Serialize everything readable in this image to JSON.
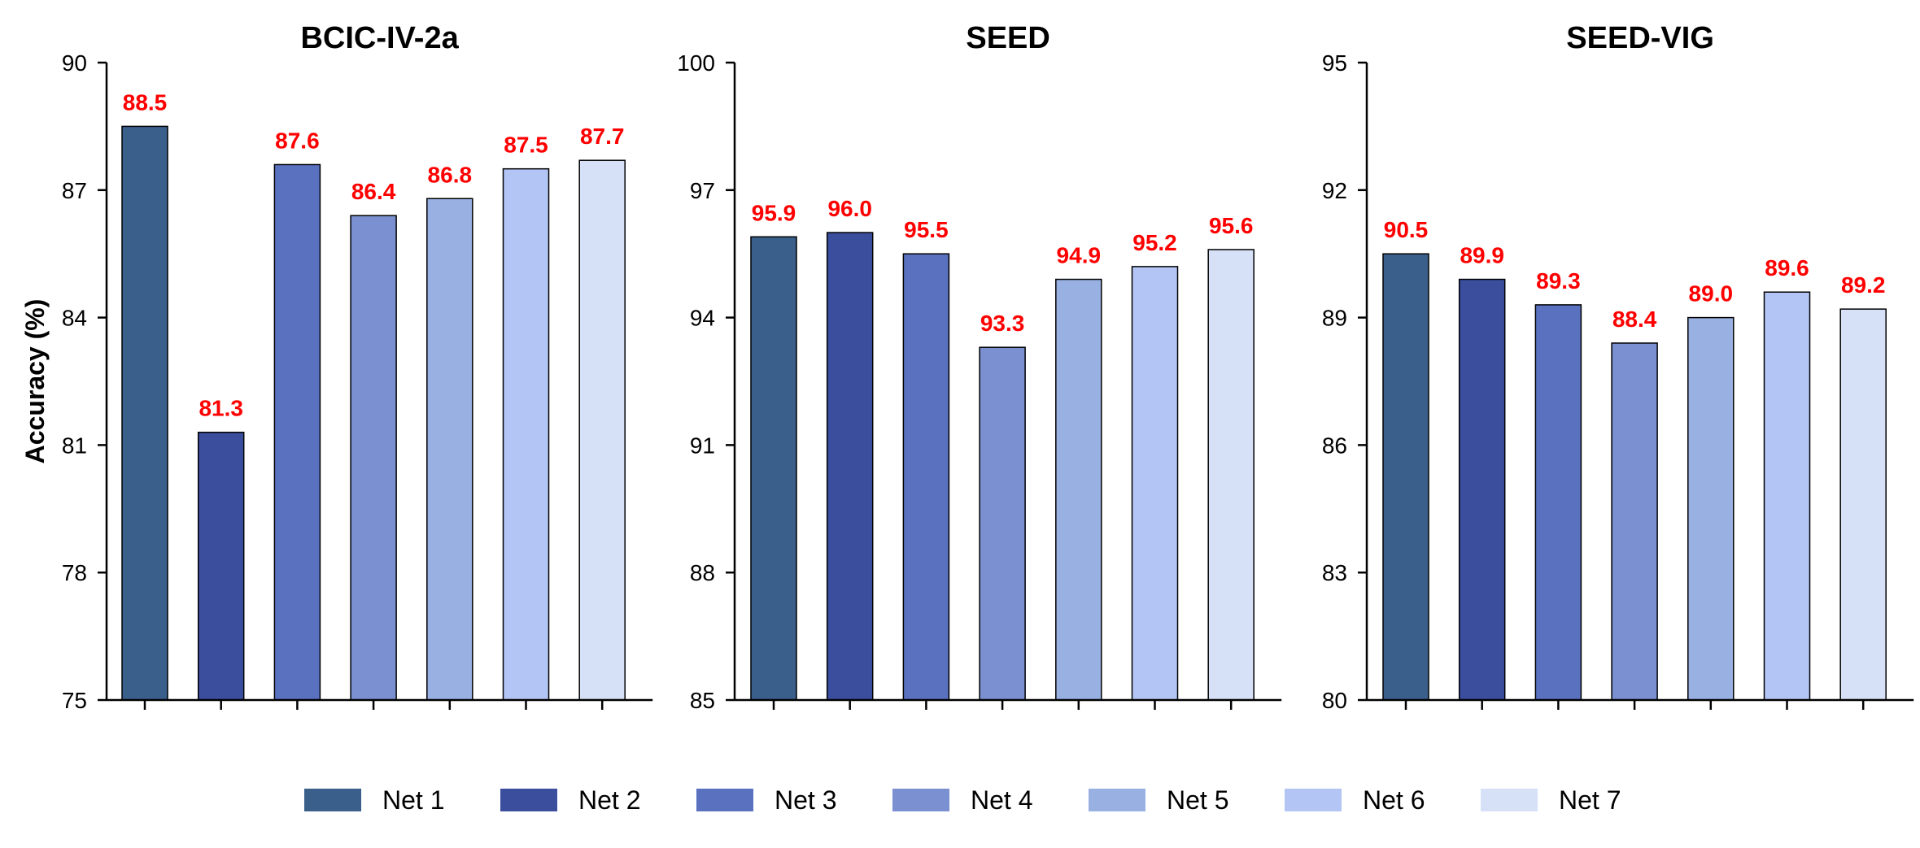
{
  "chart_data": [
    {
      "type": "bar",
      "title": "BCIC-IV-2a",
      "ylabel": "Accuracy (%)",
      "xlabel": "",
      "ylim": [
        75,
        90
      ],
      "yticks": [
        "75",
        "78",
        "81",
        "84",
        "87",
        "90"
      ],
      "categories": [
        "Net 1",
        "Net 2",
        "Net 3",
        "Net 4",
        "Net 5",
        "Net 6",
        "Net 7"
      ],
      "values": [
        88.5,
        81.3,
        87.6,
        86.4,
        86.8,
        87.5,
        87.7
      ],
      "labels": [
        "88.5",
        "81.3",
        "87.6",
        "86.4",
        "86.8",
        "87.5",
        "87.7"
      ]
    },
    {
      "type": "bar",
      "title": "SEED",
      "ylabel": "",
      "xlabel": "",
      "ylim": [
        85,
        100
      ],
      "yticks": [
        "85",
        "88",
        "91",
        "94",
        "97",
        "100"
      ],
      "categories": [
        "Net 1",
        "Net 2",
        "Net 3",
        "Net 4",
        "Net 5",
        "Net 6",
        "Net 7"
      ],
      "values": [
        95.9,
        96.0,
        95.5,
        93.3,
        94.9,
        95.2,
        95.6
      ],
      "labels": [
        "95.9",
        "96.0",
        "95.5",
        "93.3",
        "94.9",
        "95.2",
        "95.6"
      ]
    },
    {
      "type": "bar",
      "title": "SEED-VIG",
      "ylabel": "",
      "xlabel": "",
      "ylim": [
        80,
        95
      ],
      "yticks": [
        "80",
        "83",
        "86",
        "89",
        "92",
        "95"
      ],
      "categories": [
        "Net 1",
        "Net 2",
        "Net 3",
        "Net 4",
        "Net 5",
        "Net 6",
        "Net 7"
      ],
      "values": [
        90.5,
        89.9,
        89.3,
        88.4,
        89.0,
        89.6,
        89.2
      ],
      "labels": [
        "90.5",
        "89.9",
        "89.3",
        "88.4",
        "89.0",
        "89.6",
        "89.2"
      ]
    }
  ],
  "legend": {
    "position": "bottom",
    "entries": [
      "Net 1",
      "Net 2",
      "Net 3",
      "Net 4",
      "Net 5",
      "Net 6",
      "Net 7"
    ]
  },
  "colors": {
    "series": [
      "#3A5F8B",
      "#3B4E9E",
      "#5A71C0",
      "#7B90D0",
      "#98B0E2",
      "#B3C5F4",
      "#D6E0F7"
    ],
    "data_label": "#FF0000",
    "axis": "#000000"
  }
}
